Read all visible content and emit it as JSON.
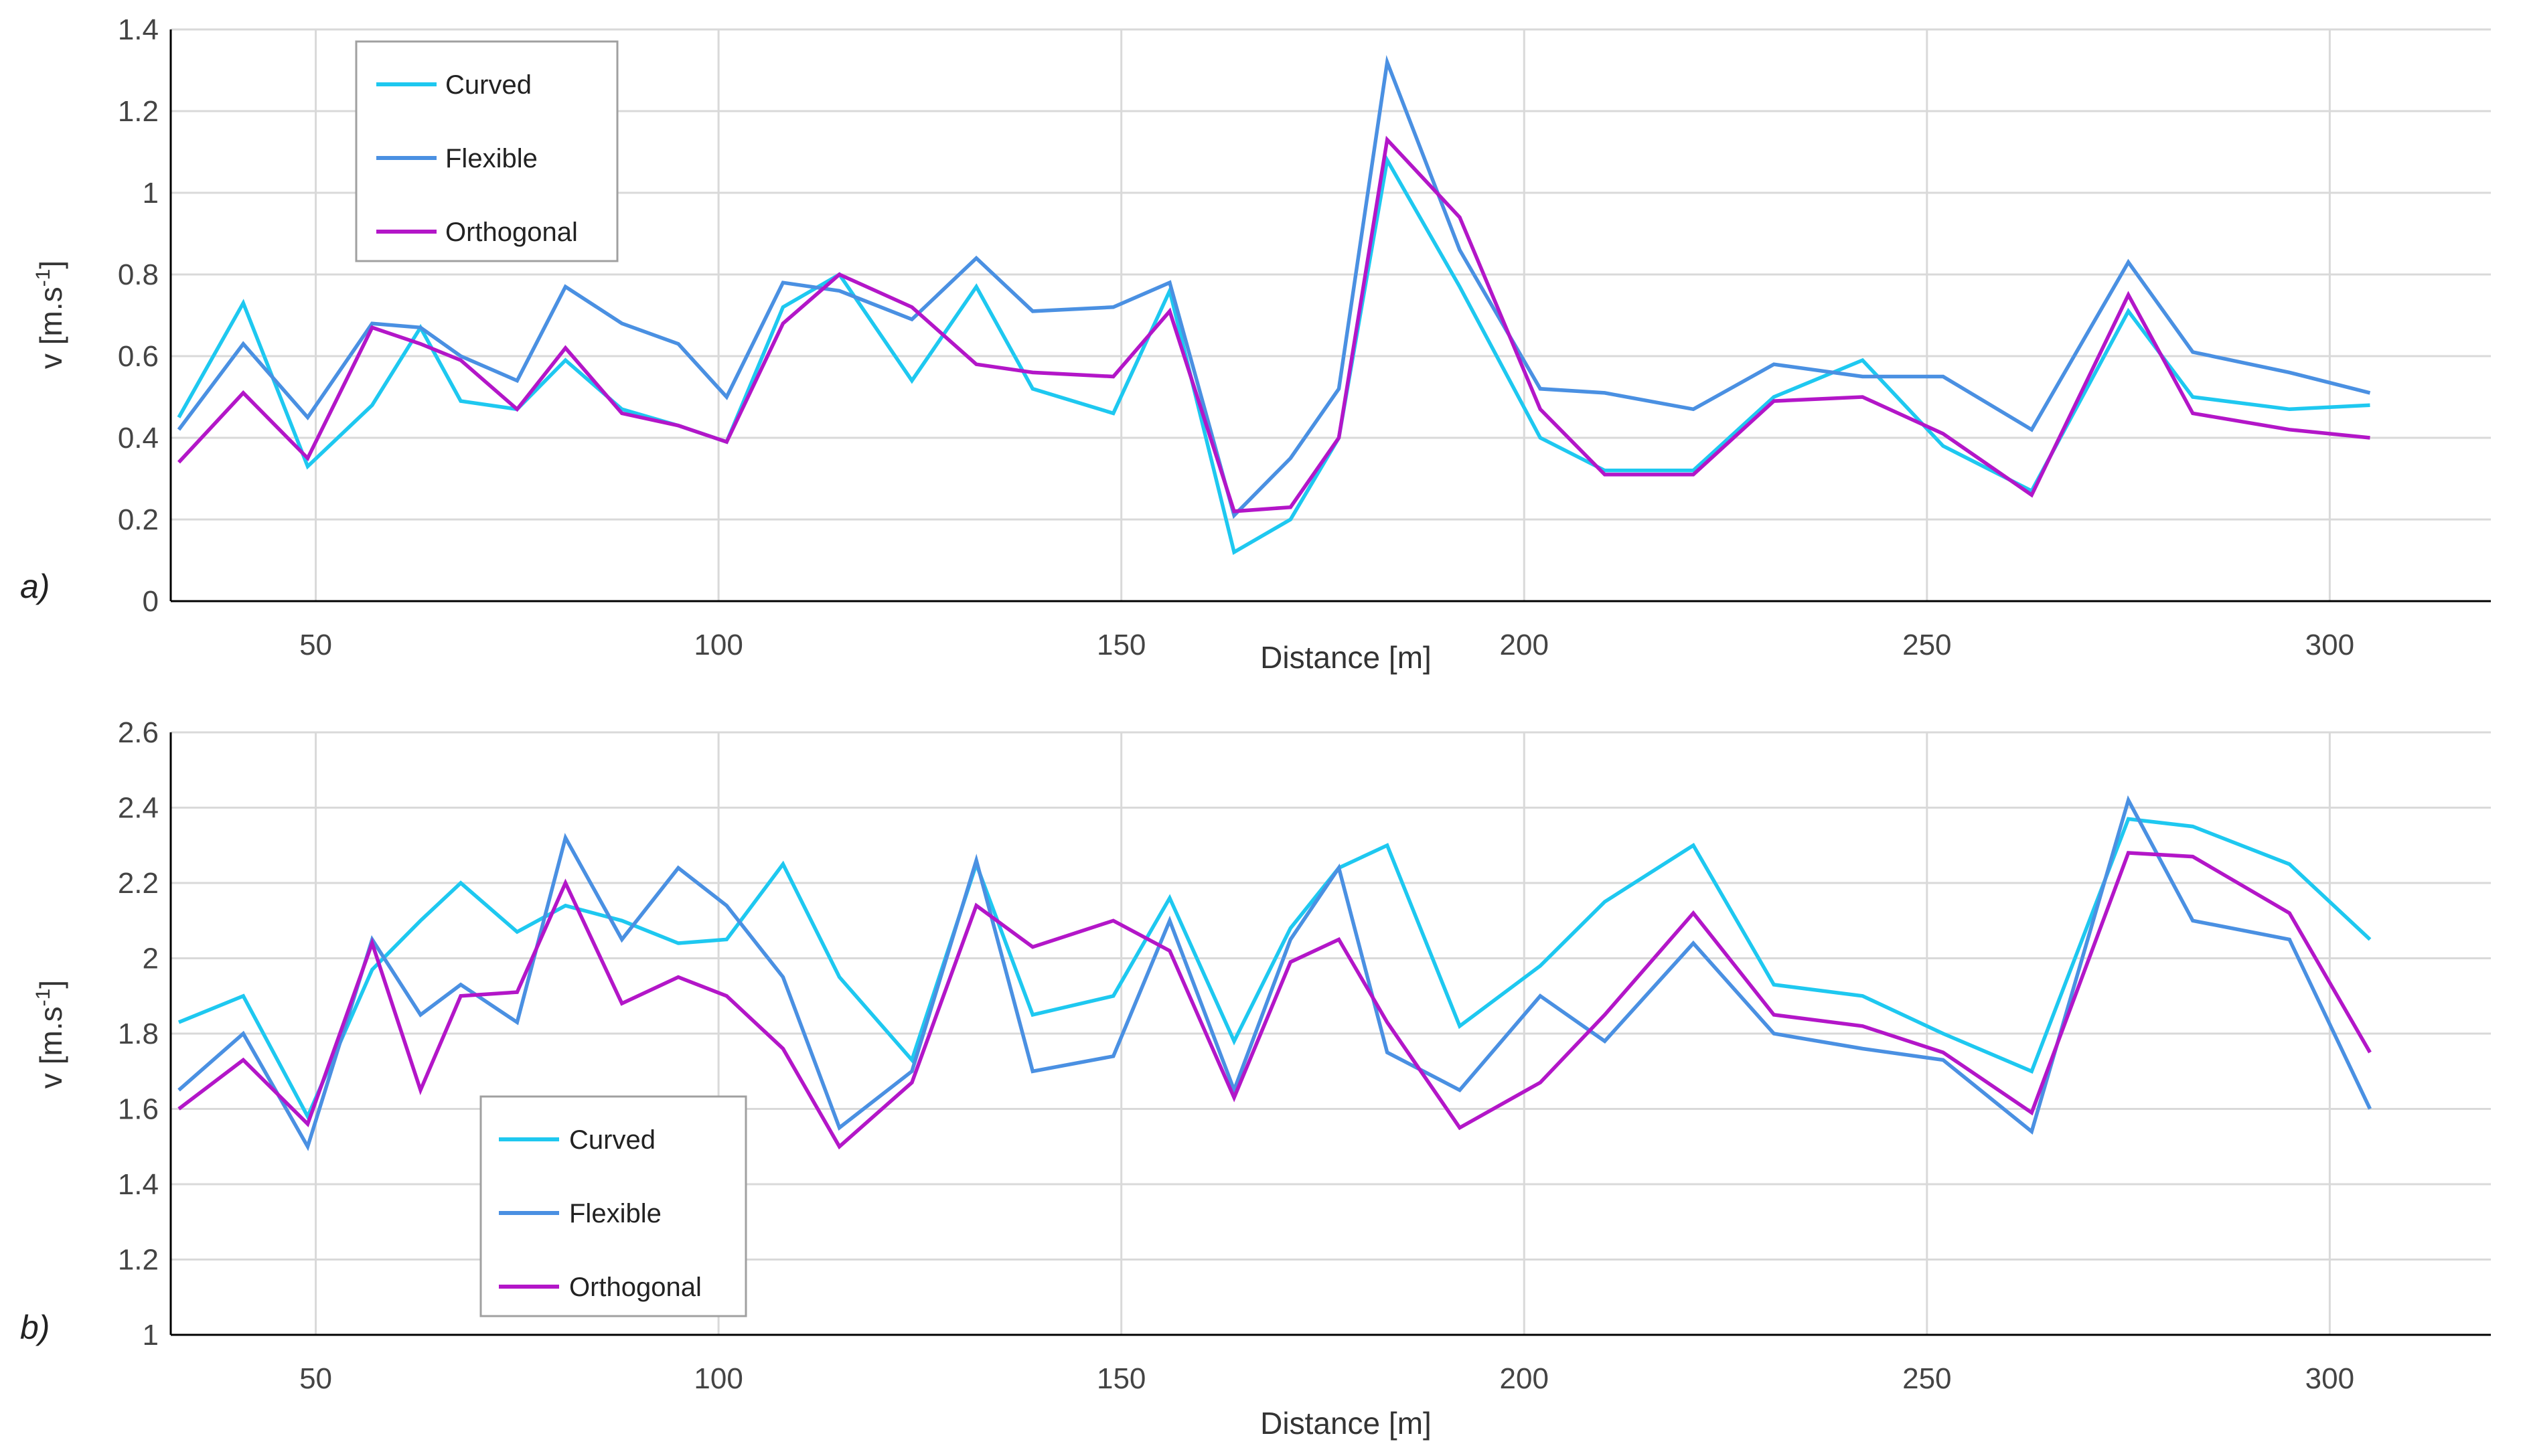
{
  "chart_data": [
    {
      "type": "line",
      "panel_label": "a)",
      "title": "",
      "xlabel": "Distance [m]",
      "ylabel": "v [m.s-1]",
      "ylabel_base": "v [m.s",
      "ylabel_sup": "-1",
      "ylabel_close": "]",
      "xlim": [
        32,
        320
      ],
      "ylim": [
        0,
        1.4
      ],
      "x_ticks": [
        50,
        100,
        150,
        200,
        250,
        300
      ],
      "y_ticks": [
        0,
        0.2,
        0.4,
        0.6,
        0.8,
        1,
        1.2,
        1.4
      ],
      "y_tick_labels": [
        "0",
        "0.2",
        "0.4",
        "0.6",
        "0.8",
        "1",
        "1.2",
        "1.4"
      ],
      "grid": true,
      "legend": "top-left",
      "x": [
        33,
        41,
        49,
        57,
        63,
        68,
        75,
        81,
        88,
        95,
        101,
        108,
        115,
        124,
        132,
        139,
        149,
        156,
        164,
        171,
        177,
        183,
        192,
        202,
        210,
        221,
        231,
        242,
        252,
        263,
        275,
        283,
        295,
        305
      ],
      "series": [
        {
          "name": "Curved",
          "color": "#1ec8f0",
          "values": [
            0.45,
            0.73,
            0.33,
            0.48,
            0.67,
            0.49,
            0.47,
            0.59,
            0.47,
            0.43,
            0.39,
            0.72,
            0.8,
            0.54,
            0.77,
            0.52,
            0.46,
            0.76,
            0.12,
            0.2,
            0.4,
            1.08,
            0.77,
            0.4,
            0.32,
            0.32,
            0.5,
            0.59,
            0.38,
            0.27,
            0.71,
            0.5,
            0.47,
            0.48
          ]
        },
        {
          "name": "Flexible",
          "color": "#4a90e2",
          "values": [
            0.42,
            0.63,
            0.45,
            0.68,
            0.67,
            0.6,
            0.54,
            0.77,
            0.68,
            0.63,
            0.5,
            0.78,
            0.76,
            0.69,
            0.84,
            0.71,
            0.72,
            0.78,
            0.21,
            0.35,
            0.52,
            1.32,
            0.86,
            0.52,
            0.51,
            0.47,
            0.58,
            0.55,
            0.55,
            0.42,
            0.83,
            0.61,
            0.56,
            0.51
          ]
        },
        {
          "name": "Orthogonal",
          "color": "#b316c8",
          "values": [
            0.34,
            0.51,
            0.35,
            0.67,
            0.63,
            0.59,
            0.47,
            0.62,
            0.46,
            0.43,
            0.39,
            0.68,
            0.8,
            0.72,
            0.58,
            0.56,
            0.55,
            0.71,
            0.22,
            0.23,
            0.4,
            1.13,
            0.94,
            0.47,
            0.31,
            0.31,
            0.49,
            0.5,
            0.41,
            0.26,
            0.75,
            0.46,
            0.42,
            0.4
          ]
        }
      ]
    },
    {
      "type": "line",
      "panel_label": "b)",
      "title": "",
      "xlabel": "Distance [m]",
      "ylabel": "v [m.s-1]",
      "ylabel_base": "v [m.s",
      "ylabel_sup": "-1",
      "ylabel_close": "]",
      "xlim": [
        32,
        320
      ],
      "ylim": [
        1,
        2.6
      ],
      "x_ticks": [
        50,
        100,
        150,
        200,
        250,
        300
      ],
      "y_ticks": [
        1,
        1.2,
        1.4,
        1.6,
        1.8,
        2,
        2.2,
        2.4,
        2.6
      ],
      "y_tick_labels": [
        "1",
        "1.2",
        "1.4",
        "1.6",
        "1.8",
        "2",
        "2.2",
        "2.4",
        "2.6"
      ],
      "grid": true,
      "legend": "bottom-left",
      "x": [
        33,
        41,
        49,
        57,
        63,
        68,
        75,
        81,
        88,
        95,
        101,
        108,
        115,
        124,
        132,
        139,
        149,
        156,
        164,
        171,
        177,
        183,
        192,
        202,
        210,
        221,
        231,
        242,
        252,
        263,
        275,
        283,
        295,
        305
      ],
      "series": [
        {
          "name": "Curved",
          "color": "#1ec8f0",
          "values": [
            1.83,
            1.9,
            1.58,
            1.97,
            2.1,
            2.2,
            2.07,
            2.14,
            2.1,
            2.04,
            2.05,
            2.25,
            1.95,
            1.73,
            2.25,
            1.85,
            1.9,
            2.16,
            1.78,
            2.08,
            2.24,
            2.3,
            1.82,
            1.98,
            2.15,
            2.3,
            1.93,
            1.9,
            1.8,
            1.7,
            2.37,
            2.35,
            2.25,
            2.05
          ]
        },
        {
          "name": "Flexible",
          "color": "#4a90e2",
          "values": [
            1.65,
            1.8,
            1.5,
            2.05,
            1.85,
            1.93,
            1.83,
            2.32,
            2.05,
            2.24,
            2.14,
            1.95,
            1.55,
            1.7,
            2.26,
            1.7,
            1.74,
            2.1,
            1.65,
            2.05,
            2.24,
            1.75,
            1.65,
            1.9,
            1.78,
            2.04,
            1.8,
            1.76,
            1.73,
            1.54,
            2.42,
            2.1,
            2.05,
            1.6
          ]
        },
        {
          "name": "Orthogonal",
          "color": "#b316c8",
          "values": [
            1.6,
            1.73,
            1.56,
            2.04,
            1.65,
            1.9,
            1.91,
            2.2,
            1.88,
            1.95,
            1.9,
            1.76,
            1.5,
            1.67,
            2.14,
            2.03,
            2.1,
            2.02,
            1.63,
            1.99,
            2.05,
            1.83,
            1.55,
            1.67,
            1.85,
            2.12,
            1.85,
            1.82,
            1.75,
            1.59,
            2.28,
            2.27,
            2.12,
            1.75
          ]
        }
      ]
    }
  ]
}
